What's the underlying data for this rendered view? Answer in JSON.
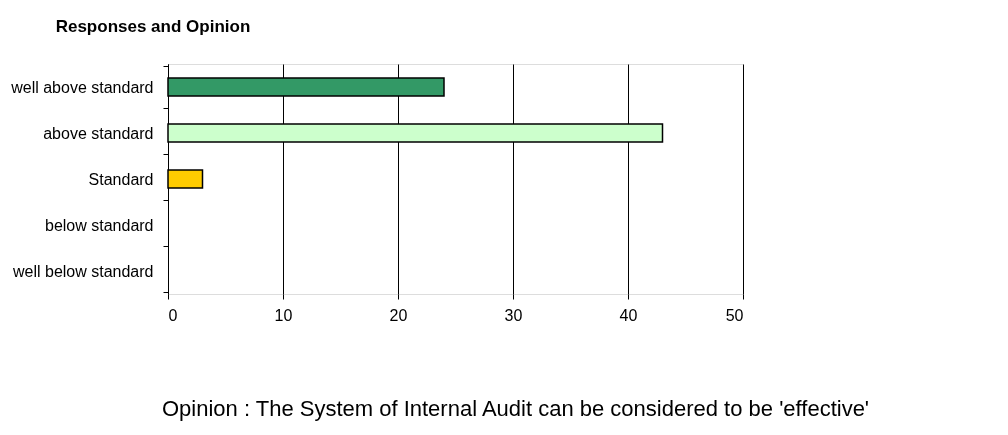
{
  "chart_data": {
    "type": "bar",
    "orientation": "horizontal",
    "title": "Responses and Opinion",
    "categories": [
      "well above standard",
      "above standard",
      "Standard",
      "below standard",
      "well below standard"
    ],
    "values": [
      24,
      43,
      3,
      0,
      0
    ],
    "colors": [
      "#339966",
      "#ccffcc",
      "#ffcc00",
      null,
      null
    ],
    "xlim": [
      0,
      50
    ],
    "xticks": [
      0,
      10,
      20,
      30,
      40,
      50
    ],
    "grid": "x",
    "annotations": [
      "Opinion : The System of Internal Audit can be considered to be 'effective'"
    ]
  }
}
